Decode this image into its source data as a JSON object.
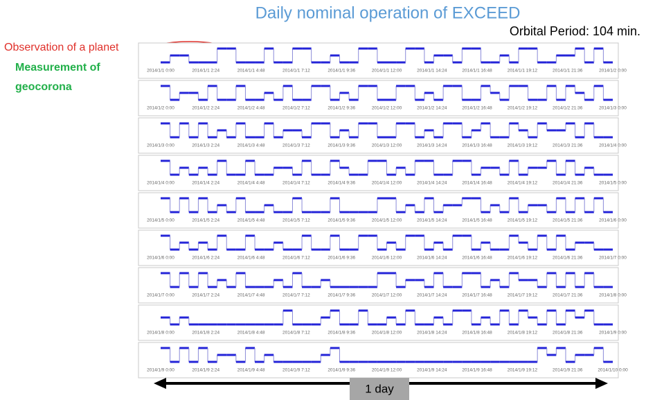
{
  "title": "Daily nominal operation of EXCEED",
  "orbital_period": "Orbital Period: 104 min.",
  "annotations": {
    "planet": "Observation of a planet",
    "geocorona_1": "Measurement of",
    "geocorona_2": "geocorona"
  },
  "span_label": "1 day",
  "rows": [
    {
      "ticks": [
        "2014/1/1 0:00",
        "2014/1/1 2:24",
        "2014/1/1 4:48",
        "2014/1/1 7:12",
        "2014/1/1 9:36",
        "2014/1/1 12:00",
        "2014/1/1 14:24",
        "2014/1/1 16:48",
        "2014/1/1 19:12",
        "2014/1/1 21:36",
        "2014/1/2 0:00"
      ],
      "levels": [
        0,
        1,
        1,
        0,
        0,
        0,
        2,
        2,
        0,
        0,
        0,
        2,
        0,
        0,
        2,
        2,
        0,
        0,
        1,
        0,
        0,
        2,
        2,
        0,
        0,
        0,
        2,
        2,
        0,
        1,
        1,
        0,
        2,
        2,
        0,
        0,
        1,
        0,
        2,
        2,
        0,
        0,
        1,
        1,
        2,
        0,
        2,
        0
      ]
    },
    {
      "ticks": [
        "2014/1/2 0:00",
        "2014/1/2 2:24",
        "2014/1/2 4:48",
        "2014/1/2 7:12",
        "2014/1/2 9:36",
        "2014/1/2 12:00",
        "2014/1/2 14:24",
        "2014/1/2 16:48",
        "2014/1/2 19:12",
        "2014/1/2 21:36",
        "2014/1/3 0:00"
      ],
      "levels": [
        2,
        0,
        1,
        1,
        0,
        2,
        0,
        0,
        2,
        0,
        0,
        1,
        0,
        2,
        0,
        0,
        2,
        2,
        0,
        1,
        0,
        2,
        2,
        0,
        0,
        2,
        2,
        0,
        1,
        0,
        2,
        2,
        0,
        0,
        2,
        1,
        0,
        2,
        2,
        0,
        0,
        2,
        0,
        2,
        1,
        0,
        2,
        0
      ]
    },
    {
      "ticks": [
        "2014/1/3 0:00",
        "2014/1/3 2:24",
        "2014/1/3 4:48",
        "2014/1/3 7:12",
        "2014/1/3 9:36",
        "2014/1/3 12:00",
        "2014/1/3 14:24",
        "2014/1/3 16:48",
        "2014/1/3 19:12",
        "2014/1/3 21:36",
        "2014/1/4 0:00"
      ],
      "levels": [
        2,
        0,
        2,
        0,
        2,
        0,
        1,
        0,
        2,
        0,
        0,
        2,
        0,
        1,
        1,
        0,
        2,
        2,
        0,
        1,
        0,
        2,
        2,
        0,
        0,
        2,
        2,
        0,
        1,
        0,
        2,
        2,
        0,
        1,
        2,
        0,
        0,
        2,
        1,
        0,
        2,
        1,
        1,
        2,
        0,
        2,
        0,
        0
      ]
    },
    {
      "ticks": [
        "2014/1/4 0:00",
        "2014/1/4 2:24",
        "2014/1/4 4:48",
        "2014/1/4 7:12",
        "2014/1/4 9:36",
        "2014/1/4 12:00",
        "2014/1/4 14:24",
        "2014/1/4 16:48",
        "2014/1/4 19:12",
        "2014/1/4 21:36",
        "2014/1/5 0:00"
      ],
      "levels": [
        2,
        0,
        1,
        0,
        1,
        0,
        2,
        0,
        0,
        2,
        0,
        0,
        1,
        1,
        0,
        2,
        0,
        0,
        2,
        1,
        0,
        0,
        2,
        2,
        0,
        1,
        0,
        2,
        2,
        0,
        0,
        2,
        2,
        0,
        1,
        1,
        0,
        2,
        0,
        1,
        1,
        2,
        0,
        2,
        0,
        1,
        0,
        0
      ]
    },
    {
      "ticks": [
        "2014/1/5 0:00",
        "2014/1/5 2:24",
        "2014/1/5 4:48",
        "2014/1/5 7:12",
        "2014/1/5 9:36",
        "2014/1/5 12:00",
        "2014/1/5 14:24",
        "2014/1/5 16:48",
        "2014/1/5 19:12",
        "2014/1/5 21:36",
        "2014/1/6 0:00"
      ],
      "levels": [
        2,
        0,
        2,
        0,
        2,
        0,
        1,
        0,
        2,
        0,
        0,
        1,
        0,
        0,
        2,
        0,
        0,
        0,
        2,
        0,
        0,
        0,
        0,
        2,
        2,
        0,
        1,
        0,
        2,
        0,
        1,
        1,
        2,
        2,
        0,
        1,
        0,
        2,
        0,
        1,
        1,
        0,
        2,
        0,
        2,
        0,
        2,
        0
      ]
    },
    {
      "ticks": [
        "2014/1/6 0:00",
        "2014/1/6 2:24",
        "2014/1/6 4:48",
        "2014/1/6 7:12",
        "2014/1/6 9:36",
        "2014/1/6 12:00",
        "2014/1/6 14:24",
        "2014/1/6 16:48",
        "2014/1/6 19:12",
        "2014/1/6 21:36",
        "2014/1/7 0:00"
      ],
      "levels": [
        2,
        0,
        1,
        0,
        1,
        0,
        2,
        0,
        0,
        2,
        0,
        0,
        1,
        0,
        0,
        2,
        0,
        0,
        2,
        0,
        0,
        2,
        2,
        0,
        1,
        0,
        2,
        2,
        0,
        1,
        0,
        2,
        2,
        0,
        1,
        0,
        0,
        2,
        1,
        0,
        2,
        0,
        2,
        0,
        1,
        1,
        0,
        0
      ]
    },
    {
      "ticks": [
        "2014/1/7 0:00",
        "2014/1/7 2:24",
        "2014/1/7 4:48",
        "2014/1/7 7:12",
        "2014/1/7 9:36",
        "2014/1/7 12:00",
        "2014/1/7 14:24",
        "2014/1/7 16:48",
        "2014/1/7 19:12",
        "2014/1/7 21:36",
        "2014/1/8 0:00"
      ],
      "levels": [
        2,
        0,
        2,
        0,
        2,
        0,
        1,
        0,
        2,
        0,
        0,
        0,
        1,
        0,
        2,
        0,
        0,
        1,
        0,
        0,
        0,
        0,
        0,
        2,
        2,
        0,
        1,
        1,
        0,
        2,
        0,
        0,
        2,
        2,
        0,
        1,
        0,
        2,
        1,
        1,
        0,
        2,
        0,
        2,
        0,
        2,
        0,
        0
      ]
    },
    {
      "ticks": [
        "2014/1/8 0:00",
        "2014/1/8 2:24",
        "2014/1/8 4:48",
        "2014/1/8 7:12",
        "2014/1/8 9:36",
        "2014/1/8 12:00",
        "2014/1/8 14:24",
        "2014/1/8 16:48",
        "2014/1/8 19:12",
        "2014/1/8 21:36",
        "2014/1/9 0:00"
      ],
      "levels": [
        1,
        0,
        1,
        0,
        0,
        0,
        0,
        0,
        0,
        0,
        0,
        0,
        0,
        2,
        0,
        0,
        0,
        1,
        2,
        0,
        0,
        2,
        0,
        0,
        1,
        0,
        2,
        0,
        0,
        1,
        0,
        2,
        2,
        0,
        1,
        0,
        2,
        0,
        2,
        1,
        0,
        2,
        0,
        2,
        1,
        2,
        0,
        0
      ]
    },
    {
      "ticks": [
        "2014/1/9 0:00",
        "2014/1/9 2:24",
        "2014/1/9 4:48",
        "2014/1/9 7:12",
        "2014/1/9 9:36",
        "2014/1/9 12:00",
        "2014/1/9 14:24",
        "2014/1/9 16:48",
        "2014/1/9 19:12",
        "2014/1/9 21:36",
        "2014/1/10 0:00"
      ],
      "levels": [
        2,
        0,
        2,
        0,
        2,
        0,
        1,
        1,
        0,
        2,
        0,
        1,
        0,
        0,
        0,
        0,
        0,
        1,
        2,
        0,
        0,
        0,
        0,
        0,
        0,
        0,
        0,
        0,
        0,
        0,
        0,
        0,
        0,
        0,
        0,
        0,
        0,
        0,
        0,
        0,
        2,
        1,
        2,
        0,
        1,
        1,
        2,
        0
      ]
    }
  ]
}
